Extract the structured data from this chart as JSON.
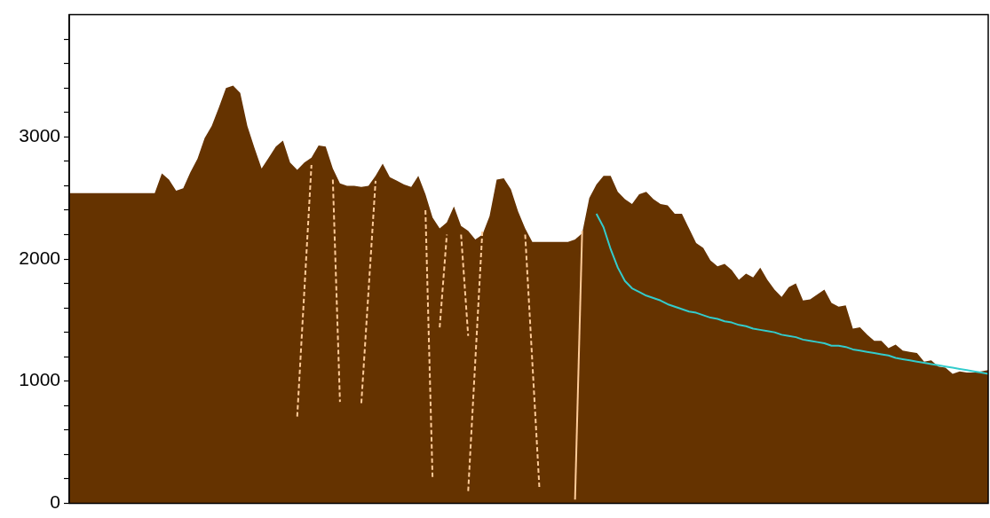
{
  "chart_data": {
    "type": "area",
    "ylim": [
      0,
      4000
    ],
    "categories": [
      null,
      null,
      null,
      null,
      null,
      null,
      null,
      null,
      null,
      null,
      null,
      null,
      null,
      null,
      null,
      null,
      null,
      null,
      null,
      null,
      null,
      null,
      null,
      null,
      null,
      null,
      null,
      null,
      null,
      null,
      null,
      null,
      null,
      null,
      null,
      null,
      null,
      null,
      null,
      null,
      null,
      null,
      null,
      null,
      null,
      null,
      null,
      null,
      null,
      null,
      null,
      null,
      null,
      null,
      null,
      null,
      null,
      null,
      null,
      null,
      null,
      null,
      null,
      null,
      null,
      null,
      null,
      null,
      null,
      null,
      null,
      null,
      null,
      null,
      null,
      null,
      null,
      null,
      null,
      null,
      null,
      null,
      null,
      null,
      null,
      null,
      null,
      null,
      null,
      null,
      null,
      null,
      null,
      null,
      null,
      null,
      null,
      null,
      null,
      null,
      null,
      null,
      null,
      null,
      null,
      null,
      null,
      null,
      null,
      null,
      null,
      null,
      null,
      null,
      null,
      null,
      null,
      null,
      null,
      null,
      null,
      null,
      null,
      null,
      null,
      null,
      null,
      null,
      null,
      null
    ],
    "yticks": [
      0,
      {
        "value": 200,
        "label": null
      },
      {
        "value": 400,
        "label": null
      },
      {
        "value": 600,
        "label": null
      },
      {
        "value": 800,
        "label": null
      },
      1000,
      {
        "value": 1200,
        "label": null
      },
      {
        "value": 1400,
        "label": null
      },
      {
        "value": 1600,
        "label": null
      },
      {
        "value": 1800,
        "label": null
      },
      2000,
      {
        "value": 2200,
        "label": null
      },
      {
        "value": 2400,
        "label": null
      },
      {
        "value": 2600,
        "label": null
      },
      {
        "value": 2800,
        "label": null
      },
      3000,
      {
        "value": 3200,
        "label": null
      },
      {
        "value": 3400,
        "label": null
      },
      {
        "value": 3600,
        "label": null
      },
      {
        "value": 3800,
        "label": null
      }
    ],
    "tick_labels": "y",
    "grid": false,
    "legend": false,
    "series": [
      {
        "color": "#653300",
        "values": [
          2540,
          2540,
          2540,
          2540,
          2540,
          2540,
          2540,
          2540,
          2540,
          2540,
          2540,
          2540,
          2540,
          2700,
          2650,
          2560,
          2580,
          2710,
          2820,
          2990,
          3090,
          3240,
          3400,
          3420,
          3360,
          3090,
          2910,
          2740,
          2830,
          2920,
          2970,
          2790,
          2730,
          2790,
          2830,
          2930,
          2920,
          2740,
          2620,
          2600,
          2600,
          2590,
          2600,
          2680,
          2780,
          2670,
          2640,
          2610,
          2590,
          2680,
          2530,
          2340,
          2250,
          2300,
          2430,
          2270,
          2230,
          2160,
          2200,
          2350,
          2650,
          2660,
          2570,
          2390,
          2250,
          2140,
          2140,
          2140,
          2140,
          2140,
          2140,
          2160,
          2210,
          2500,
          2610,
          2680,
          2680,
          2550,
          2490,
          2450,
          2530,
          2550,
          2490,
          2450,
          2440,
          2370,
          2370,
          2250,
          2130,
          2090,
          1990,
          1940,
          1960,
          1910,
          1830,
          1880,
          1850,
          1930,
          1830,
          1750,
          1690,
          1770,
          1800,
          1660,
          1670,
          1710,
          1750,
          1640,
          1610,
          1620,
          1430,
          1440,
          1380,
          1330,
          1330,
          1270,
          1300,
          1250,
          1240,
          1230,
          1160,
          1170,
          1120,
          1110,
          1060,
          1080,
          1070,
          1070,
          1080,
          1090
        ]
      },
      {
        "type": "line",
        "color": "#ffcc99",
        "line_style": "dashed",
        "values": [
          null,
          null,
          null,
          null,
          null,
          null,
          null,
          null,
          null,
          null,
          null,
          null,
          null,
          null,
          null,
          null,
          null,
          null,
          null,
          null,
          null,
          null,
          null,
          null,
          null,
          null,
          null,
          null,
          null,
          null,
          null,
          null,
          710,
          1740,
          2770,
          null,
          null,
          null,
          null,
          null,
          null,
          null,
          null,
          null,
          null,
          null,
          null,
          null,
          null,
          null,
          null,
          null,
          null,
          null,
          null,
          null,
          null,
          null,
          null,
          null,
          null,
          null,
          null,
          null,
          null,
          null,
          null,
          null,
          null,
          null,
          null,
          null,
          null,
          null,
          null,
          null,
          null,
          null,
          null,
          null,
          null,
          null,
          null,
          null,
          null,
          null,
          null,
          null,
          null,
          null,
          null,
          null,
          null,
          null,
          null,
          null,
          null,
          null,
          null,
          null,
          null,
          null,
          null,
          null,
          null,
          null,
          null,
          null,
          null,
          null,
          null,
          null,
          null,
          null,
          null,
          null,
          null,
          null,
          null,
          null,
          null,
          null,
          null,
          null,
          null,
          null,
          null,
          null,
          null,
          null
        ]
      },
      {
        "type": "line",
        "color": "#ffcc99",
        "line_style": "dashed",
        "values": [
          null,
          null,
          null,
          null,
          null,
          null,
          null,
          null,
          null,
          null,
          null,
          null,
          null,
          null,
          null,
          null,
          null,
          null,
          null,
          null,
          null,
          null,
          null,
          null,
          null,
          null,
          null,
          null,
          null,
          null,
          null,
          null,
          null,
          null,
          null,
          null,
          null,
          2650,
          830,
          null,
          null,
          null,
          null,
          null,
          null,
          null,
          null,
          null,
          null,
          null,
          null,
          null,
          null,
          null,
          null,
          null,
          null,
          null,
          null,
          null,
          null,
          null,
          null,
          null,
          null,
          null,
          null,
          null,
          null,
          null,
          null,
          null,
          null,
          null,
          null,
          null,
          null,
          null,
          null,
          null,
          null,
          null,
          null,
          null,
          null,
          null,
          null,
          null,
          null,
          null,
          null,
          null,
          null,
          null,
          null,
          null,
          null,
          null,
          null,
          null,
          null,
          null,
          null,
          null,
          null,
          null,
          null,
          null,
          null,
          null,
          null,
          null,
          null,
          null,
          null,
          null,
          null,
          null,
          null,
          null,
          null,
          null,
          null,
          null,
          null,
          null,
          null,
          null,
          null,
          null
        ]
      },
      {
        "type": "line",
        "color": "#ffcc99",
        "line_style": "dashed",
        "values": [
          null,
          null,
          null,
          null,
          null,
          null,
          null,
          null,
          null,
          null,
          null,
          null,
          null,
          null,
          null,
          null,
          null,
          null,
          null,
          null,
          null,
          null,
          null,
          null,
          null,
          null,
          null,
          null,
          null,
          null,
          null,
          null,
          null,
          null,
          null,
          null,
          null,
          null,
          null,
          null,
          null,
          820,
          1730,
          2640,
          null,
          null,
          null,
          null,
          null,
          null,
          null,
          null,
          null,
          null,
          null,
          null,
          null,
          null,
          null,
          null,
          null,
          null,
          null,
          null,
          null,
          null,
          null,
          null,
          null,
          null,
          null,
          null,
          null,
          null,
          null,
          null,
          null,
          null,
          null,
          null,
          null,
          null,
          null,
          null,
          null,
          null,
          null,
          null,
          null,
          null,
          null,
          null,
          null,
          null,
          null,
          null,
          null,
          null,
          null,
          null,
          null,
          null,
          null,
          null,
          null,
          null,
          null,
          null,
          null,
          null,
          null,
          null,
          null,
          null,
          null,
          null,
          null,
          null,
          null,
          null,
          null,
          null,
          null,
          null,
          null,
          null,
          null,
          null,
          null,
          null
        ]
      },
      {
        "type": "line",
        "color": "#ffcc99",
        "line_style": "dashed",
        "values": [
          null,
          null,
          null,
          null,
          null,
          null,
          null,
          null,
          null,
          null,
          null,
          null,
          null,
          null,
          null,
          null,
          null,
          null,
          null,
          null,
          null,
          null,
          null,
          null,
          null,
          null,
          null,
          null,
          null,
          null,
          null,
          null,
          null,
          null,
          null,
          null,
          null,
          null,
          null,
          null,
          null,
          null,
          null,
          null,
          null,
          null,
          null,
          null,
          null,
          null,
          2400,
          200,
          null,
          null,
          null,
          null,
          null,
          null,
          null,
          null,
          null,
          null,
          null,
          null,
          null,
          null,
          null,
          null,
          null,
          null,
          null,
          null,
          null,
          null,
          null,
          null,
          null,
          null,
          null,
          null,
          null,
          null,
          null,
          null,
          null,
          null,
          null,
          null,
          null,
          null,
          null,
          null,
          null,
          null,
          null,
          null,
          null,
          null,
          null,
          null,
          null,
          null,
          null,
          null,
          null,
          null,
          null,
          null,
          null,
          null,
          null,
          null,
          null,
          null,
          null,
          null,
          null,
          null,
          null,
          null,
          null,
          null,
          null,
          null,
          null,
          null,
          null,
          null,
          null,
          null
        ]
      },
      {
        "type": "line",
        "color": "#ffcc99",
        "line_style": "dashed",
        "values": [
          null,
          null,
          null,
          null,
          null,
          null,
          null,
          null,
          null,
          null,
          null,
          null,
          null,
          null,
          null,
          null,
          null,
          null,
          null,
          null,
          null,
          null,
          null,
          null,
          null,
          null,
          null,
          null,
          null,
          null,
          null,
          null,
          null,
          null,
          null,
          null,
          null,
          null,
          null,
          null,
          null,
          null,
          null,
          null,
          null,
          null,
          null,
          null,
          null,
          null,
          null,
          null,
          1440,
          2200,
          null,
          null,
          null,
          null,
          null,
          null,
          null,
          null,
          null,
          null,
          null,
          null,
          null,
          null,
          null,
          null,
          null,
          null,
          null,
          null,
          null,
          null,
          null,
          null,
          null,
          null,
          null,
          null,
          null,
          null,
          null,
          null,
          null,
          null,
          null,
          null,
          null,
          null,
          null,
          null,
          null,
          null,
          null,
          null,
          null,
          null,
          null,
          null,
          null,
          null,
          null,
          null,
          null,
          null,
          null,
          null,
          null,
          null,
          null,
          null,
          null,
          null,
          null,
          null,
          null,
          null,
          null,
          null,
          null,
          null,
          null,
          null,
          null,
          null,
          null,
          null
        ]
      },
      {
        "type": "line",
        "color": "#ffcc99",
        "line_style": "dashed",
        "values": [
          null,
          null,
          null,
          null,
          null,
          null,
          null,
          null,
          null,
          null,
          null,
          null,
          null,
          null,
          null,
          null,
          null,
          null,
          null,
          null,
          null,
          null,
          null,
          null,
          null,
          null,
          null,
          null,
          null,
          null,
          null,
          null,
          null,
          null,
          null,
          null,
          null,
          null,
          null,
          null,
          null,
          null,
          null,
          null,
          null,
          null,
          null,
          null,
          null,
          null,
          null,
          null,
          null,
          null,
          null,
          2200,
          1370,
          null,
          null,
          null,
          null,
          null,
          null,
          null,
          null,
          null,
          null,
          null,
          null,
          null,
          null,
          null,
          null,
          null,
          null,
          null,
          null,
          null,
          null,
          null,
          null,
          null,
          null,
          null,
          null,
          null,
          null,
          null,
          null,
          null,
          null,
          null,
          null,
          null,
          null,
          null,
          null,
          null,
          null,
          null,
          null,
          null,
          null,
          null,
          null,
          null,
          null,
          null,
          null,
          null,
          null,
          null,
          null,
          null,
          null,
          null,
          null,
          null,
          null,
          null,
          null,
          null,
          null,
          null,
          null,
          null,
          null,
          null,
          null,
          null
        ]
      },
      {
        "type": "line",
        "color": "#ffcc99",
        "line_style": "dashed",
        "values": [
          null,
          null,
          null,
          null,
          null,
          null,
          null,
          null,
          null,
          null,
          null,
          null,
          null,
          null,
          null,
          null,
          null,
          null,
          null,
          null,
          null,
          null,
          null,
          null,
          null,
          null,
          null,
          null,
          null,
          null,
          null,
          null,
          null,
          null,
          null,
          null,
          null,
          null,
          null,
          null,
          null,
          null,
          null,
          null,
          null,
          null,
          null,
          null,
          null,
          null,
          null,
          null,
          null,
          null,
          null,
          null,
          100,
          1170,
          2240,
          null,
          null,
          null,
          null,
          null,
          null,
          null,
          null,
          null,
          null,
          null,
          null,
          null,
          null,
          null,
          null,
          null,
          null,
          null,
          null,
          null,
          null,
          null,
          null,
          null,
          null,
          null,
          null,
          null,
          null,
          null,
          null,
          null,
          null,
          null,
          null,
          null,
          null,
          null,
          null,
          null,
          null,
          null,
          null,
          null,
          null,
          null,
          null,
          null,
          null,
          null,
          null,
          null,
          null,
          null,
          null,
          null,
          null,
          null,
          null,
          null,
          null,
          null,
          null,
          null,
          null,
          null,
          null,
          null,
          null,
          null
        ]
      },
      {
        "type": "line",
        "color": "#ffcc99",
        "line_style": "dashed",
        "values": [
          null,
          null,
          null,
          null,
          null,
          null,
          null,
          null,
          null,
          null,
          null,
          null,
          null,
          null,
          null,
          null,
          null,
          null,
          null,
          null,
          null,
          null,
          null,
          null,
          null,
          null,
          null,
          null,
          null,
          null,
          null,
          null,
          null,
          null,
          null,
          null,
          null,
          null,
          null,
          null,
          null,
          null,
          null,
          null,
          null,
          null,
          null,
          null,
          null,
          null,
          null,
          null,
          null,
          null,
          null,
          null,
          null,
          null,
          null,
          null,
          null,
          null,
          null,
          null,
          2200,
          1160,
          120,
          null,
          null,
          null,
          null,
          null,
          null,
          null,
          null,
          null,
          null,
          null,
          null,
          null,
          null,
          null,
          null,
          null,
          null,
          null,
          null,
          null,
          null,
          null,
          null,
          null,
          null,
          null,
          null,
          null,
          null,
          null,
          null,
          null,
          null,
          null,
          null,
          null,
          null,
          null,
          null,
          null,
          null,
          null,
          null,
          null,
          null,
          null,
          null,
          null,
          null,
          null,
          null,
          null,
          null,
          null,
          null,
          null,
          null,
          null,
          null,
          null,
          null,
          null
        ]
      },
      {
        "type": "line",
        "color": "#ffcc99",
        "line_style": "solid",
        "values": [
          null,
          null,
          null,
          null,
          null,
          null,
          null,
          null,
          null,
          null,
          null,
          null,
          null,
          null,
          null,
          null,
          null,
          null,
          null,
          null,
          null,
          null,
          null,
          null,
          null,
          null,
          null,
          null,
          null,
          null,
          null,
          null,
          null,
          null,
          null,
          null,
          null,
          null,
          null,
          null,
          null,
          null,
          null,
          null,
          null,
          null,
          null,
          null,
          null,
          null,
          null,
          null,
          null,
          null,
          null,
          null,
          null,
          null,
          null,
          null,
          null,
          null,
          null,
          null,
          null,
          null,
          null,
          null,
          null,
          null,
          null,
          30,
          2230,
          null,
          null,
          null,
          null,
          null,
          null,
          null,
          null,
          null,
          null,
          null,
          null,
          null,
          null,
          null,
          null,
          null,
          null,
          null,
          null,
          null,
          null,
          null,
          null,
          null,
          null,
          null,
          null,
          null,
          null,
          null,
          null,
          null,
          null,
          null,
          null,
          null,
          null,
          null,
          null,
          null,
          null,
          null,
          null,
          null,
          null,
          null,
          null,
          null,
          null,
          null,
          null,
          null,
          null,
          null,
          null,
          null
        ]
      },
      {
        "type": "line",
        "color": "#33cccc",
        "line_style": "solid",
        "values": [
          null,
          null,
          null,
          null,
          null,
          null,
          null,
          null,
          null,
          null,
          null,
          null,
          null,
          null,
          null,
          null,
          null,
          null,
          null,
          null,
          null,
          null,
          null,
          null,
          null,
          null,
          null,
          null,
          null,
          null,
          null,
          null,
          null,
          null,
          null,
          null,
          null,
          null,
          null,
          null,
          null,
          null,
          null,
          null,
          null,
          null,
          null,
          null,
          null,
          null,
          null,
          null,
          null,
          null,
          null,
          null,
          null,
          null,
          null,
          null,
          null,
          null,
          null,
          null,
          null,
          null,
          null,
          null,
          null,
          null,
          null,
          null,
          null,
          null,
          2370,
          2260,
          2080,
          1930,
          1820,
          1760,
          1730,
          1700,
          1680,
          1660,
          1630,
          1610,
          1590,
          1570,
          1560,
          1540,
          1520,
          1510,
          1490,
          1480,
          1460,
          1450,
          1430,
          1420,
          1410,
          1400,
          1380,
          1370,
          1360,
          1340,
          1330,
          1320,
          1310,
          1290,
          1290,
          1280,
          1260,
          1250,
          1240,
          1230,
          1220,
          1210,
          1190,
          1180,
          1170,
          1160,
          1150,
          1140,
          1130,
          1120,
          1110,
          1100,
          1090,
          1080,
          1070,
          1060
        ]
      }
    ]
  }
}
